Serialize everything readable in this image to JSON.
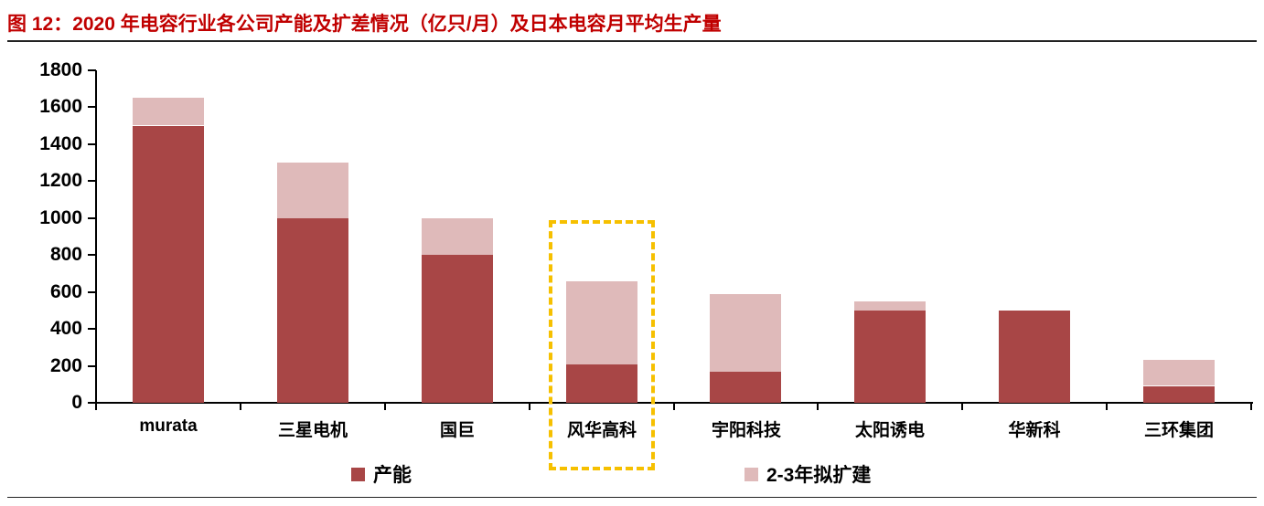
{
  "title": "图 12：2020 年电容行业各公司产能及扩差情况（亿只/月）及日本电容月平均生产量",
  "colors": {
    "title": "#c00000",
    "capacity": "#a84646",
    "expansion": "#dfbaba",
    "highlight": "#f6c000"
  },
  "legend": {
    "capacity": "产能",
    "expansion": "2-3年拟扩建"
  },
  "highlighted_category": "风华高科",
  "chart_data": {
    "type": "bar",
    "stacked": true,
    "title": "图 12：2020 年电容行业各公司产能及扩差情况（亿只/月）及日本电容月平均生产量",
    "xlabel": "",
    "ylabel": "",
    "ylim": [
      0,
      1800
    ],
    "yticks": [
      0,
      200,
      400,
      600,
      800,
      1000,
      1200,
      1400,
      1600,
      1800
    ],
    "grid": false,
    "legend_position": "bottom",
    "categories": [
      "murata",
      "三星电机",
      "国巨",
      "风华高科",
      "宇阳科技",
      "太阳诱电",
      "华新科",
      "三环集团"
    ],
    "series": [
      {
        "name": "产能",
        "values": [
          1500,
          1000,
          800,
          210,
          170,
          500,
          500,
          90
        ]
      },
      {
        "name": "2-3年拟扩建",
        "values": [
          150,
          300,
          200,
          450,
          420,
          50,
          0,
          140
        ]
      }
    ],
    "totals": [
      1650,
      1300,
      1000,
      660,
      590,
      550,
      500,
      230
    ],
    "annotations": [
      "风华高科 highlighted by yellow dashed box"
    ]
  }
}
